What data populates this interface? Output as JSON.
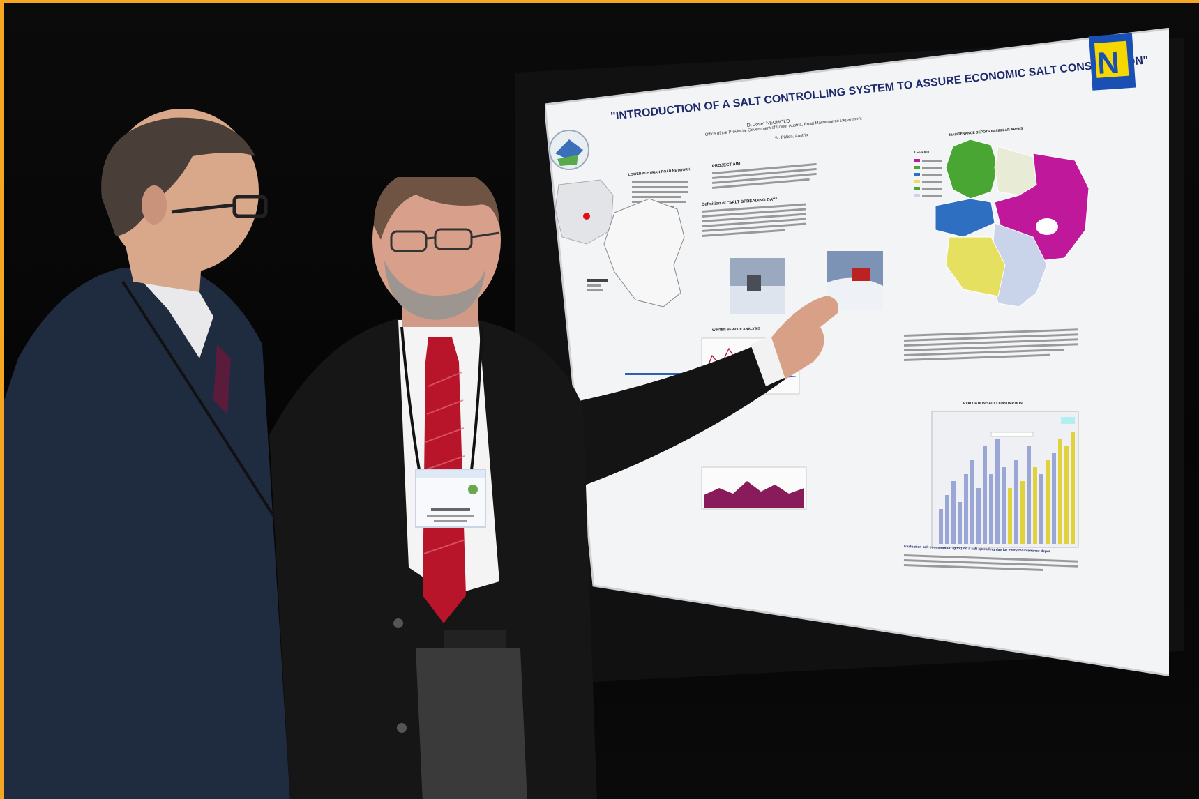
{
  "poster": {
    "title": "\"INTRODUCTION OF A SALT CONTROLLING SYSTEM TO ASSURE ECONOMIC SALT CONSUMPTION\"",
    "author": "DI Josef NEUHOLD",
    "affiliation": "Office of the Provincial Government of Lower Austria, Road Maintenance Department",
    "location": "St. Pölten, Austria",
    "logo_letter": "N",
    "section_project": "PROJECT AIM",
    "section_definition": "Definition of \"SALT SPREADING DAY\"",
    "section_map_title": "MAINTENANCE DEPOTS IN SIMILAR AREAS",
    "section_network": "LOWER AUSTRIAN ROAD NETWORK",
    "section_winter": "WINTER SERVICE ANALYSIS",
    "section_eval": "EVALUATION SALT CONSUMPTION",
    "legend_label": "LEGEND",
    "bottom_note": "Evaluation salt consumption (g/m²) on a salt spreading day for every maintenance depot"
  },
  "colors": {
    "frame_accent": "#f5a623",
    "map_magenta": "#c0189a",
    "map_green": "#4aa632",
    "map_yellow": "#e6e060",
    "map_blue": "#2f6fc2",
    "map_lightblue": "#c9d3ea",
    "logo_yellow": "#f6d800",
    "logo_blue": "#1a4fb3"
  }
}
